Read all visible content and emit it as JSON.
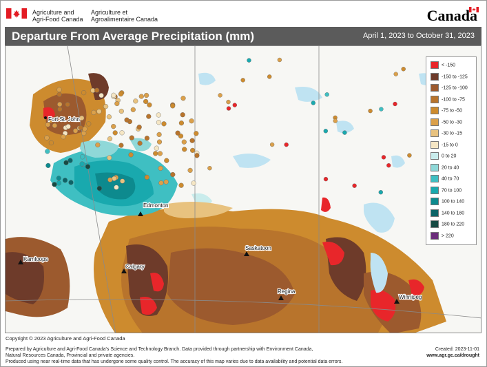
{
  "header": {
    "gov_en_line1": "Agriculture and",
    "gov_en_line2": "Agri-Food Canada",
    "gov_fr_line1": "Agriculture et",
    "gov_fr_line2": "Agroalimentaire Canada",
    "wordmark": "Canada"
  },
  "title": "Departure From Average Precipitation (mm)",
  "date_range": "April 1, 2023 to October 31, 2023",
  "legend": [
    {
      "label": "< -150",
      "color": "#e8262a"
    },
    {
      "label": "-150 to -125",
      "color": "#6e3b2a"
    },
    {
      "label": "-125 to -100",
      "color": "#9c5a2e"
    },
    {
      "label": "-100 to -75",
      "color": "#b8742c"
    },
    {
      "label": "-75 to -50",
      "color": "#cd8b2e"
    },
    {
      "label": "-50 to -30",
      "color": "#dba04a"
    },
    {
      "label": "-30 to -15",
      "color": "#e8c27f"
    },
    {
      "label": "-15 to 0",
      "color": "#f5e6c4"
    },
    {
      "label": "0 to 20",
      "color": "#c9ecec"
    },
    {
      "label": "20 to 40",
      "color": "#8fd8d8"
    },
    {
      "label": "40 to 70",
      "color": "#3fbfc2"
    },
    {
      "label": "70 to 100",
      "color": "#19a9ae"
    },
    {
      "label": "100 to 140",
      "color": "#0d8a8e"
    },
    {
      "label": "140 to 180",
      "color": "#0c6467"
    },
    {
      "label": "180 to 220",
      "color": "#174a43"
    },
    {
      "label": "> 220",
      "color": "#6b2d7a"
    }
  ],
  "cities": [
    {
      "name": "Fort St. John"
    },
    {
      "name": "Edmonton"
    },
    {
      "name": "Kamloops"
    },
    {
      "name": "Calgary"
    },
    {
      "name": "Saskatoon"
    },
    {
      "name": "Regina"
    },
    {
      "name": "Winnipeg"
    }
  ],
  "copyright": "Copyright © 2023 Agriculture and Agri-Food Canada",
  "footer": {
    "line1": "Prepared by Agriculture and Agri-Food Canada's Science and Technology Branch. Data provided through partnership with Environment Canada,",
    "line2": "Natural Resources Canada, Provincial and private agencies.",
    "line3": "Produced using near real-time data that has undergone some quality control. The accuracy of this map varies due to data availability and potential data errors.",
    "created": "Created: 2023-11-01",
    "url": "www.agr.gc.ca/drought"
  },
  "colors": {
    "title_bar": "#5b5b5b",
    "water": "#bfe3f2",
    "land_base": "#ffffff"
  }
}
